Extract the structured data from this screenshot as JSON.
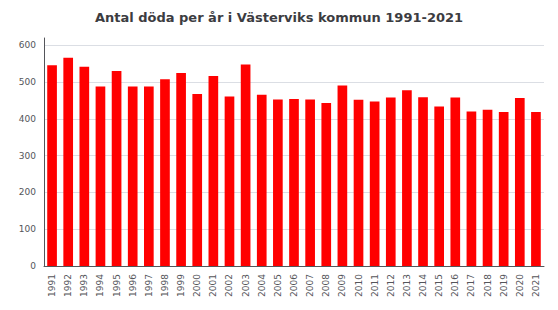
{
  "chart_data": {
    "type": "bar",
    "title": "Antal döda per år i Västerviks kommun 1991-2021",
    "categories": [
      "1991",
      "1992",
      "1993",
      "1994",
      "1995",
      "1996",
      "1997",
      "1998",
      "1999",
      "2000",
      "2001",
      "2002",
      "2003",
      "2004",
      "2005",
      "2006",
      "2007",
      "2008",
      "2009",
      "2010",
      "2011",
      "2012",
      "2013",
      "2014",
      "2015",
      "2016",
      "2017",
      "2018",
      "2019",
      "2020",
      "2021"
    ],
    "values": [
      546,
      566,
      542,
      488,
      530,
      488,
      488,
      508,
      525,
      468,
      517,
      461,
      548,
      466,
      453,
      454,
      453,
      443,
      491,
      452,
      447,
      458,
      478,
      459,
      434,
      458,
      420,
      425,
      419,
      457,
      419
    ],
    "color": "#ff0000",
    "ylim": [
      0,
      620
    ],
    "yticks": [
      0,
      100,
      200,
      300,
      400,
      500,
      600
    ],
    "grid": true
  }
}
